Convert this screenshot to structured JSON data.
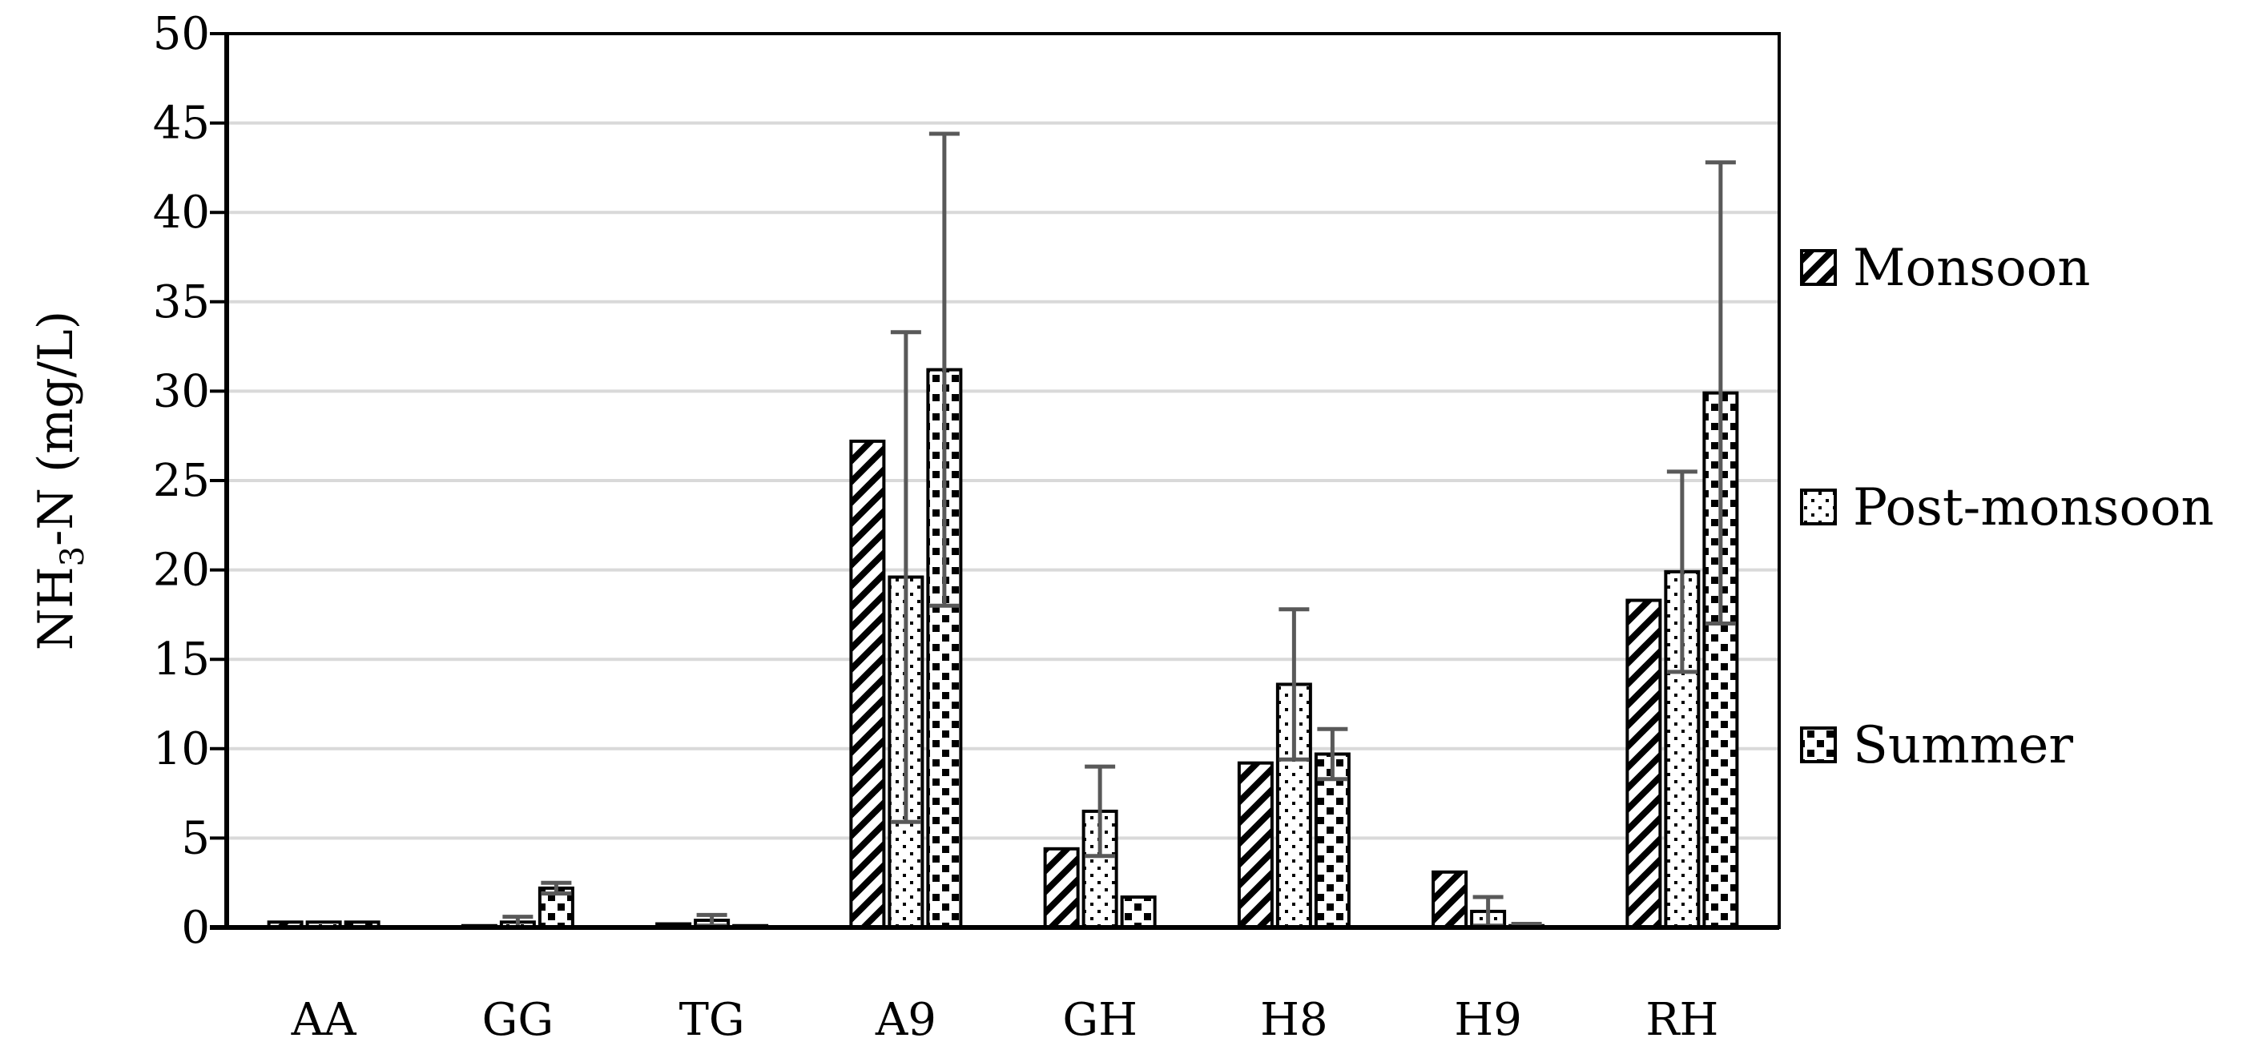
{
  "chart_data": {
    "type": "bar",
    "categories": [
      "AA",
      "GG",
      "TG",
      "A9",
      "GH",
      "H8",
      "H9",
      "RH"
    ],
    "series": [
      {
        "name": "Monsoon",
        "pattern": "diagonal-stripes",
        "values": [
          0.3,
          0.1,
          0.2,
          27.2,
          4.4,
          9.2,
          3.1,
          18.3
        ],
        "error": [
          0,
          0,
          0,
          0,
          0,
          0,
          0,
          0
        ]
      },
      {
        "name": "Post-monsoon",
        "pattern": "sparse-dots",
        "values": [
          0.3,
          0.3,
          0.4,
          19.6,
          6.5,
          13.6,
          0.9,
          19.9
        ],
        "error": [
          0,
          0.3,
          0.3,
          13.7,
          2.5,
          4.2,
          0.8,
          5.6
        ]
      },
      {
        "name": "Summer",
        "pattern": "dense-checks",
        "values": [
          0.3,
          2.2,
          0.1,
          31.2,
          1.7,
          9.7,
          0.1,
          29.9
        ],
        "error": [
          0,
          0.3,
          0,
          13.2,
          0,
          1.4,
          0.1,
          12.9
        ]
      }
    ],
    "ylabel_main": "NH",
    "ylabel_sub": "3",
    "ylabel_rest": "-N (mg/L)",
    "ylim": [
      0,
      50
    ],
    "yticks": [
      "0",
      "5",
      "10",
      "15",
      "20",
      "25",
      "30",
      "35",
      "40",
      "45",
      "50"
    ],
    "grid": true,
    "legend_position": "right",
    "colors": {
      "bar_fill": "#000000",
      "bar_background": "#ffffff",
      "error_bar": "#595959",
      "grid": "#d9d9d9"
    }
  }
}
